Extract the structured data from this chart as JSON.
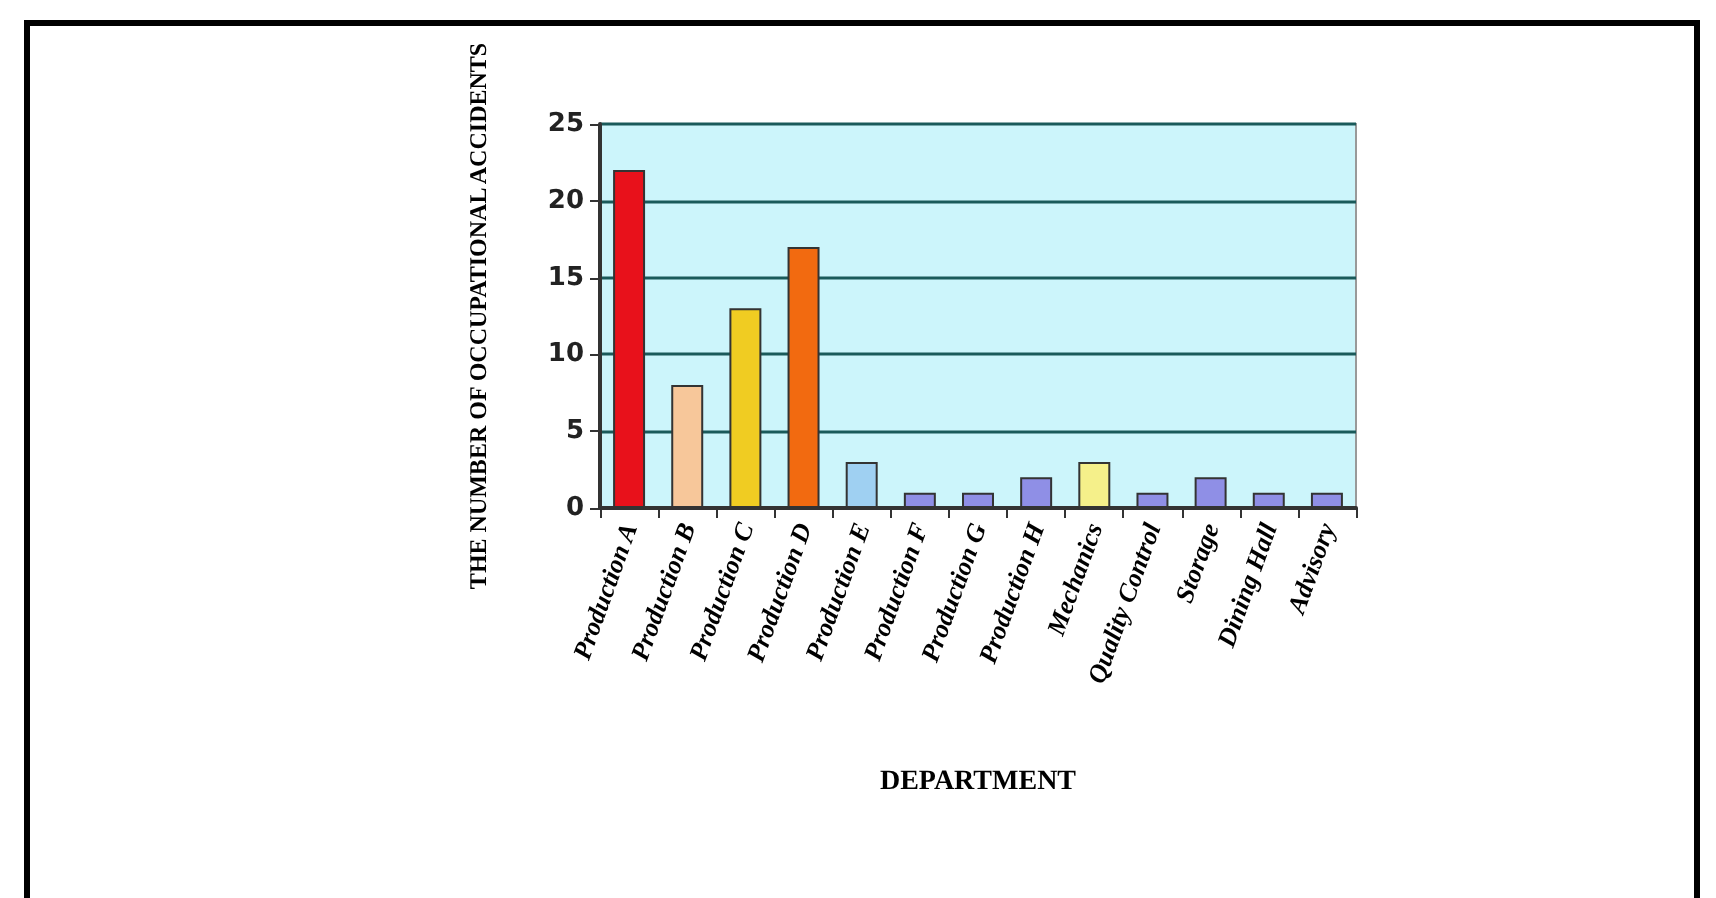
{
  "chart_data": {
    "type": "bar",
    "xlabel": "DEPARTMENT",
    "ylabel": "THE NUMBER OF OCCUPATIONAL ACCIDENTS",
    "categories": [
      "Production A",
      "Production B",
      "Production C",
      "Production D",
      "Production E",
      "Production F",
      "Production G",
      "Production H",
      "Mechanics",
      "Quality Control",
      "Storage",
      "Dining Hall",
      "Advisory"
    ],
    "values": [
      22,
      8,
      13,
      17,
      3,
      1,
      1,
      2,
      3,
      1,
      2,
      1,
      1
    ],
    "colors": [
      "#e8111b",
      "#f7c79a",
      "#f0cc22",
      "#f26a10",
      "#9fd0f2",
      "#8f8fe6",
      "#8f8fe6",
      "#8f8fe6",
      "#f5f08a",
      "#8f8fe6",
      "#8f8fe6",
      "#8f8fe6",
      "#8f8fe6"
    ],
    "ylim": [
      0,
      25
    ],
    "yticks": [
      0,
      5,
      10,
      15,
      20,
      25
    ],
    "grid": "y"
  }
}
